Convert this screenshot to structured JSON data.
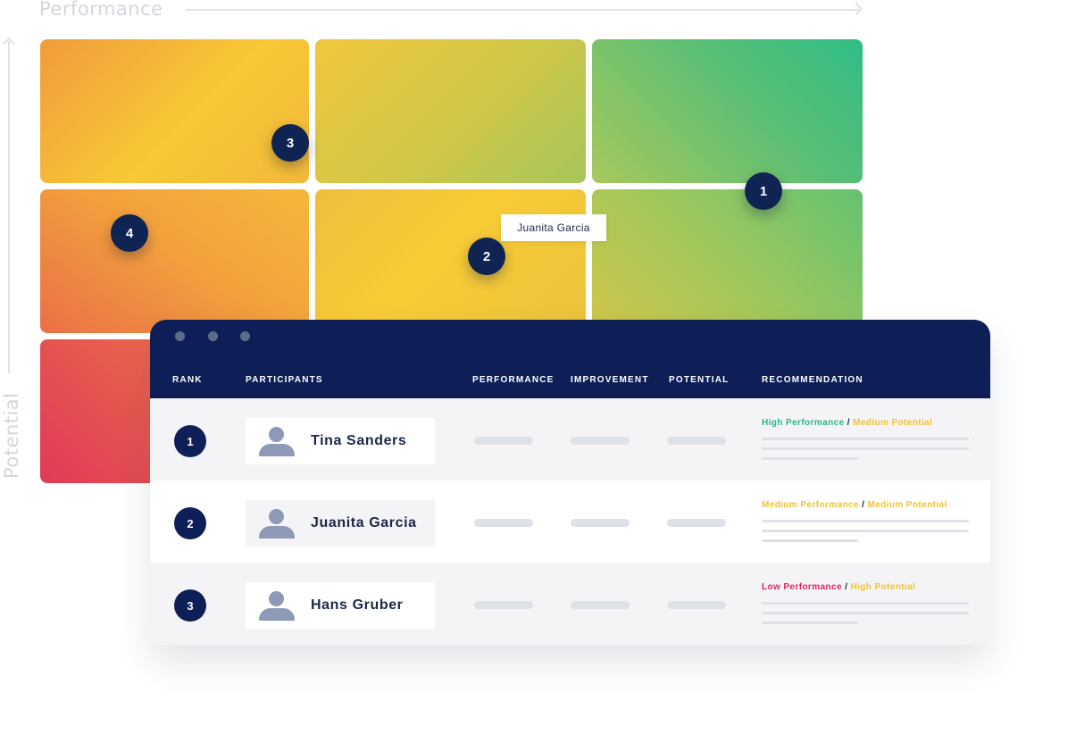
{
  "axes": {
    "x_label": "Performance",
    "y_label": "Potential"
  },
  "grid": {
    "markers": [
      "3",
      "1",
      "4",
      "2"
    ],
    "tooltip": "Juanita Garcia"
  },
  "table": {
    "columns": {
      "rank": "RANK",
      "participants": "PARTICIPANTS",
      "performance": "PERFORMANCE",
      "improvement": "IMPROVEMENT",
      "potential": "POTENTIAL",
      "recommendation": "RECOMMENDATION"
    },
    "rows": [
      {
        "rank": "1",
        "name": "Tina Sanders",
        "rec_perf": "High Performance",
        "rec_sep": " / ",
        "rec_pot": "Medium Potential"
      },
      {
        "rank": "2",
        "name": "Juanita Garcia",
        "rec_perf": "Medium Performance",
        "rec_sep": " / ",
        "rec_pot": "Medium Potential"
      },
      {
        "rank": "3",
        "name": "Hans Gruber",
        "rec_perf": "Low Performance",
        "rec_sep": " / ",
        "rec_pot": "High Potential"
      }
    ]
  },
  "colors": {
    "navy": "#0d1f56",
    "high": "#2db784",
    "medium": "#f2c230",
    "low": "#e0245e"
  }
}
